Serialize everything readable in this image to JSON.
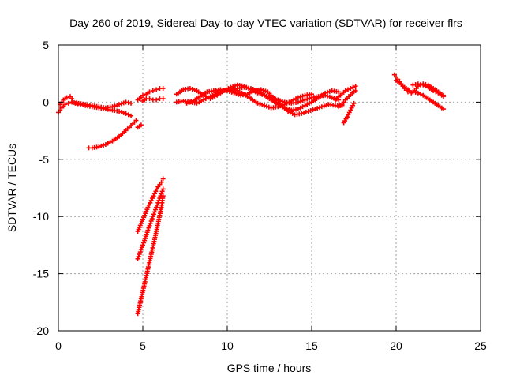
{
  "chart_data": {
    "type": "scatter",
    "title": "Day 260 of 2019, Sidereal Day-to-day VTEC variation (SDTVAR) for receiver flrs",
    "xlabel": "GPS time / hours",
    "ylabel": "SDTVAR / TECUs",
    "xlim": [
      0,
      25
    ],
    "ylim": [
      -20,
      5
    ],
    "xticks": [
      "0",
      "5",
      "10",
      "15",
      "20",
      "25"
    ],
    "yticks": [
      "-20",
      "-15",
      "-10",
      "-5",
      "0",
      "5"
    ],
    "grid": true,
    "colors": {
      "series": "#ff0000",
      "grid": "#a0a0a0",
      "axes": "#000000"
    },
    "series": [
      {
        "x": [
          0.0,
          0.2,
          0.4,
          0.6,
          0.8,
          1.0,
          1.3,
          1.6,
          2.0,
          2.4,
          2.8,
          3.2,
          3.6,
          4.0,
          4.3
        ],
        "y": [
          -0.9,
          -0.5,
          -0.2,
          -0.1,
          0.0,
          -0.1,
          -0.2,
          -0.3,
          -0.4,
          -0.5,
          -0.6,
          -0.7,
          -0.8,
          -1.0,
          -1.2
        ]
      },
      {
        "x": [
          0.1,
          0.3,
          0.5,
          0.7,
          0.8
        ],
        "y": [
          -0.2,
          0.2,
          0.4,
          0.5,
          0.3
        ]
      },
      {
        "x": [
          0.8,
          1.2,
          1.6,
          2.0,
          2.4,
          2.8,
          3.2,
          3.6,
          4.0,
          4.3
        ],
        "y": [
          0.0,
          -0.1,
          -0.2,
          -0.3,
          -0.4,
          -0.5,
          -0.4,
          -0.2,
          0.0,
          -0.1
        ]
      },
      {
        "x": [
          1.8,
          2.0,
          2.4,
          2.8,
          3.2,
          3.6,
          3.9,
          4.2,
          4.4,
          4.6
        ],
        "y": [
          -4.0,
          -4.0,
          -3.9,
          -3.7,
          -3.4,
          -3.0,
          -2.6,
          -2.2,
          -1.9,
          -1.6
        ]
      },
      {
        "x": [
          4.7,
          4.9
        ],
        "y": [
          -2.2,
          -2.0
        ]
      },
      {
        "x": [
          4.7,
          4.9,
          5.0,
          5.2,
          5.4,
          5.6,
          5.8,
          6.0,
          6.2
        ],
        "y": [
          0.2,
          0.4,
          0.6,
          0.7,
          0.9,
          1.0,
          1.1,
          1.2,
          1.2
        ]
      },
      {
        "x": [
          5.0,
          5.2,
          5.4,
          5.6,
          5.8,
          6.0,
          6.2
        ],
        "y": [
          0.1,
          0.3,
          0.3,
          0.2,
          0.2,
          0.3,
          0.3
        ]
      },
      {
        "x": [
          4.7,
          4.9,
          5.1,
          5.3,
          5.5,
          5.7,
          5.9,
          6.1,
          6.2
        ],
        "y": [
          -11.3,
          -10.6,
          -9.9,
          -9.2,
          -8.6,
          -8.0,
          -7.4,
          -7.0,
          -6.7
        ]
      },
      {
        "x": [
          4.7,
          4.9,
          5.1,
          5.3,
          5.5,
          5.7,
          5.9,
          6.1,
          6.2
        ],
        "y": [
          -13.7,
          -12.9,
          -12.1,
          -11.2,
          -10.4,
          -9.6,
          -8.8,
          -8.0,
          -7.6
        ]
      },
      {
        "x": [
          4.7,
          4.9,
          5.1,
          5.3,
          5.5,
          5.7,
          5.9,
          6.1,
          6.2
        ],
        "y": [
          -18.5,
          -17.2,
          -15.9,
          -14.6,
          -13.3,
          -12.0,
          -10.6,
          -9.2,
          -8.2
        ]
      },
      {
        "x": [
          7.0,
          7.4,
          7.8,
          8.2,
          8.6,
          9.0,
          9.4,
          9.8,
          10.2,
          10.6,
          11.0,
          11.4,
          11.8,
          12.2,
          12.6,
          13.0,
          13.4,
          13.8,
          14.2,
          14.6,
          15.0,
          15.4,
          15.8,
          16.2,
          16.6
        ],
        "y": [
          0.7,
          1.1,
          1.2,
          1.0,
          0.6,
          0.3,
          0.6,
          1.0,
          1.3,
          1.5,
          1.4,
          1.1,
          0.8,
          0.6,
          0.4,
          0.2,
          0.0,
          -0.1,
          0.0,
          0.2,
          0.4,
          0.5,
          0.6,
          0.4,
          0.2
        ]
      },
      {
        "x": [
          7.0,
          7.4,
          7.8,
          8.2,
          8.6,
          9.0,
          9.4,
          9.8,
          10.2,
          10.6,
          11.0,
          11.4,
          11.8,
          12.2,
          12.6,
          13.0,
          13.4,
          13.8,
          14.2,
          14.6,
          15.0,
          15.4,
          15.8,
          16.2,
          16.6
        ],
        "y": [
          0.0,
          0.1,
          0.0,
          -0.1,
          0.2,
          0.5,
          0.8,
          1.0,
          1.1,
          1.2,
          1.3,
          1.2,
          1.0,
          0.6,
          0.2,
          -0.2,
          -0.5,
          -0.7,
          -0.6,
          -0.3,
          0.0,
          0.4,
          0.8,
          1.0,
          0.9
        ]
      },
      {
        "x": [
          7.6,
          8.0,
          8.4,
          8.8,
          9.2,
          9.6,
          10.0,
          10.4,
          10.8,
          11.2,
          11.6,
          12.0,
          12.4,
          12.8,
          13.2,
          13.6,
          14.0,
          14.4,
          14.8,
          15.2,
          15.6,
          16.0,
          16.4,
          16.8
        ],
        "y": [
          -0.1,
          0.1,
          0.5,
          0.9,
          1.0,
          1.1,
          1.0,
          0.8,
          0.6,
          0.7,
          1.0,
          1.1,
          0.9,
          0.3,
          -0.3,
          -0.8,
          -1.1,
          -1.0,
          -0.8,
          -0.6,
          -0.4,
          -0.2,
          -0.3,
          -0.3
        ]
      },
      {
        "x": [
          10.2,
          10.6,
          11.0,
          11.4,
          11.8,
          12.2,
          12.6,
          13.0,
          13.4,
          13.8,
          14.2,
          14.6,
          15.0
        ],
        "y": [
          1.2,
          1.0,
          0.7,
          0.3,
          -0.1,
          -0.3,
          -0.5,
          -0.4,
          -0.2,
          0.1,
          0.4,
          0.6,
          0.7
        ]
      },
      {
        "x": [
          16.4,
          16.7,
          17.0,
          17.3,
          17.6
        ],
        "y": [
          0.2,
          0.6,
          1.0,
          1.2,
          1.4
        ]
      },
      {
        "x": [
          16.6,
          16.8,
          17.0,
          17.2,
          17.4,
          17.6
        ],
        "y": [
          -0.4,
          -0.2,
          0.2,
          0.5,
          0.8,
          1.0
        ]
      },
      {
        "x": [
          16.9,
          17.1,
          17.3,
          17.5
        ],
        "y": [
          -1.8,
          -1.3,
          -0.7,
          -0.1
        ]
      },
      {
        "x": [
          19.9,
          20.1,
          20.3,
          20.5,
          20.7,
          20.9,
          21.1,
          21.3,
          21.6,
          21.9,
          22.2,
          22.5,
          22.8
        ],
        "y": [
          2.4,
          2.0,
          1.6,
          1.2,
          0.9,
          0.8,
          1.0,
          1.4,
          1.6,
          1.5,
          1.2,
          0.9,
          0.6
        ]
      },
      {
        "x": [
          20.0,
          20.2,
          20.4,
          20.6,
          20.8,
          21.0,
          21.3,
          21.6,
          21.9,
          22.2,
          22.5,
          22.8
        ],
        "y": [
          1.9,
          1.7,
          1.4,
          1.2,
          1.0,
          0.9,
          0.8,
          0.6,
          0.3,
          0.0,
          -0.3,
          -0.6
        ]
      },
      {
        "x": [
          21.0,
          21.3,
          21.6,
          21.9,
          22.2,
          22.5,
          22.8
        ],
        "y": [
          1.5,
          1.6,
          1.5,
          1.3,
          1.0,
          0.8,
          0.5
        ]
      }
    ]
  }
}
